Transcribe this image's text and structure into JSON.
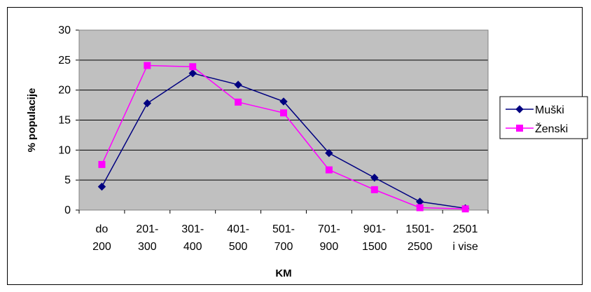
{
  "chart_data": {
    "type": "line",
    "xlabel": "KM",
    "ylabel": "% populacije",
    "ylim": [
      0,
      30
    ],
    "ytick_step": 5,
    "grid": true,
    "legend_position": "right",
    "categories": [
      [
        "do",
        "200"
      ],
      [
        "201-",
        "300"
      ],
      [
        "301-",
        "400"
      ],
      [
        "401-",
        "500"
      ],
      [
        "501-",
        "700"
      ],
      [
        "701-",
        "900"
      ],
      [
        "901-",
        "1500"
      ],
      [
        "1501-",
        "2500"
      ],
      [
        "2501",
        "i vise"
      ]
    ],
    "series": [
      {
        "name": "Muški",
        "color": "#000080",
        "marker": "diamond",
        "values": [
          3.9,
          17.8,
          22.8,
          20.9,
          18.1,
          9.5,
          5.4,
          1.4,
          0.3
        ]
      },
      {
        "name": "Ženski",
        "color": "#FF00FF",
        "marker": "square",
        "values": [
          7.6,
          24.1,
          23.9,
          18.0,
          16.2,
          6.7,
          3.4,
          0.4,
          0.2
        ]
      }
    ],
    "colors": {
      "plot_background": "#C0C0C0",
      "gridline": "#000000"
    }
  }
}
